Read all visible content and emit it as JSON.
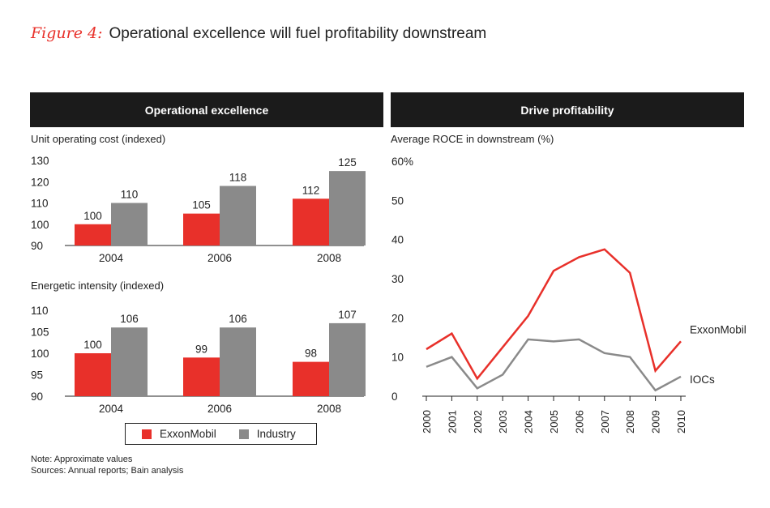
{
  "header": {
    "figure_label": "Figure 4:",
    "title": "Operational excellence will fuel profitability downstream"
  },
  "left_panel": {
    "title": "Operational excellence"
  },
  "right_panel": {
    "title": "Drive profitability"
  },
  "colors": {
    "exxon": "#e8302a",
    "industry": "#8a8a8a",
    "header_bg": "#1b1b1b"
  },
  "legend": {
    "items": [
      {
        "label": "ExxonMobil",
        "color": "#e8302a"
      },
      {
        "label": "Industry",
        "color": "#8a8a8a"
      }
    ]
  },
  "notes": {
    "note": "Note: Approximate values",
    "sources": "Sources: Annual reports; Bain analysis"
  },
  "chart_data": [
    {
      "type": "bar",
      "title": "Unit operating cost (indexed)",
      "categories": [
        "2004",
        "2006",
        "2008"
      ],
      "series": [
        {
          "name": "ExxonMobil",
          "values": [
            100,
            105,
            112
          ]
        },
        {
          "name": "Industry",
          "values": [
            110,
            118,
            125
          ]
        }
      ],
      "ylim": [
        90,
        130
      ],
      "yticks": [
        "90",
        "100",
        "110",
        "120",
        "130"
      ]
    },
    {
      "type": "bar",
      "title": "Energetic intensity (indexed)",
      "categories": [
        "2004",
        "2006",
        "2008"
      ],
      "series": [
        {
          "name": "ExxonMobil",
          "values": [
            100,
            99,
            98
          ]
        },
        {
          "name": "Industry",
          "values": [
            106,
            106,
            107
          ]
        }
      ],
      "ylim": [
        90,
        110
      ],
      "yticks": [
        "90",
        "95",
        "100",
        "105",
        "110"
      ]
    },
    {
      "type": "line",
      "title": "Average ROCE in downstream (%)",
      "x": [
        "2000",
        "2001",
        "2002",
        "2003",
        "2004",
        "2005",
        "2006",
        "2007",
        "2008",
        "2009",
        "2010"
      ],
      "series": [
        {
          "name": "ExxonMobil",
          "values": [
            12,
            16,
            4.5,
            12.5,
            20.5,
            32,
            35.5,
            37.5,
            31.5,
            6.5,
            14
          ]
        },
        {
          "name": "IOCs",
          "values": [
            7.5,
            10,
            2,
            5.5,
            14.5,
            14,
            14.5,
            11,
            10,
            1.5,
            5
          ]
        }
      ],
      "ylim": [
        0,
        60
      ],
      "yticks": [
        "0",
        "10",
        "20",
        "30",
        "40",
        "50",
        "60%"
      ]
    }
  ]
}
